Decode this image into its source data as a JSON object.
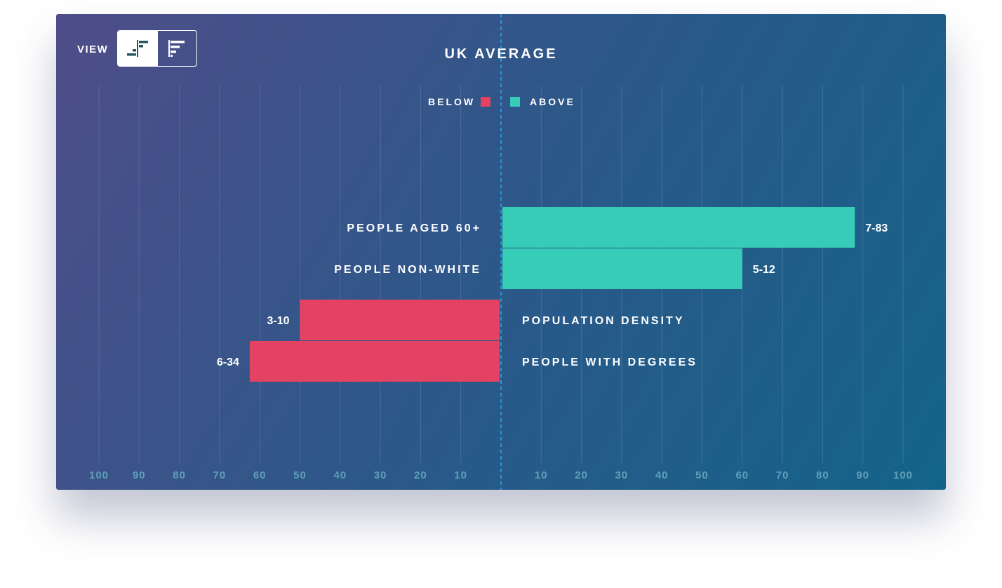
{
  "view": {
    "label": "VIEW",
    "modes": [
      {
        "icon": "diverging-bars-icon",
        "active": true
      },
      {
        "icon": "sorted-bars-icon",
        "active": false
      }
    ]
  },
  "colors": {
    "below": "#e44262",
    "above": "#36ccb8",
    "average_line": "#2aa8f0",
    "toggle_icon": "#27555e"
  },
  "chart_data": {
    "type": "bar",
    "title": "UK AVERAGE",
    "legend": [
      {
        "name": "BELOW",
        "color": "#e44262"
      },
      {
        "name": "ABOVE",
        "color": "#36ccb8"
      }
    ],
    "legend_position": "top-center",
    "axis": {
      "left_ticks": [
        "100",
        "90",
        "80",
        "70",
        "60",
        "50",
        "40",
        "30",
        "20",
        "10"
      ],
      "right_ticks": [
        "10",
        "20",
        "30",
        "40",
        "50",
        "60",
        "70",
        "80",
        "90",
        "100"
      ],
      "range": [
        -100,
        100
      ]
    },
    "grid": true,
    "bars": [
      {
        "category": "PEOPLE AGED 60+",
        "value": 88,
        "label": "7-83",
        "direction": "above"
      },
      {
        "category": "PEOPLE NON-WHITE",
        "value": 60,
        "label": "5-12",
        "direction": "above"
      },
      {
        "category": "POPULATION DENSITY",
        "value": -50,
        "label": "3-10",
        "direction": "below"
      },
      {
        "category": "PEOPLE WITH DEGREES",
        "value": -62.5,
        "label": "6-34",
        "direction": "below"
      }
    ]
  }
}
